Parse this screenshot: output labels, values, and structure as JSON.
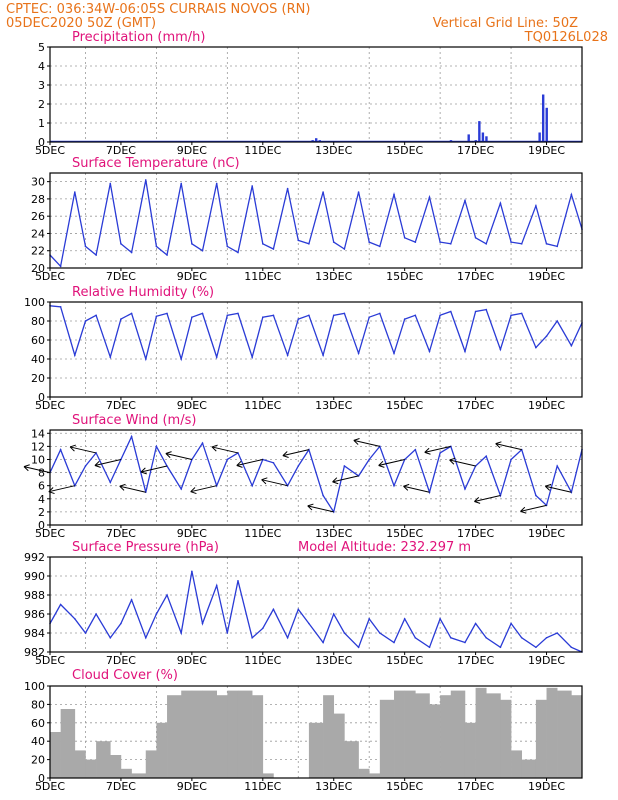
{
  "header": {
    "left_line1": "CPTEC:   036:34W-06:05S   CURRAIS NOVOS (RN)",
    "left_line2": "05DEC2020 50Z (GMT)",
    "right_line1": "Vertical Grid Line: 50Z",
    "right_line2": "TQ0126L028"
  },
  "colors": {
    "header": "#e8731a",
    "title": "#e0127a",
    "series": "#2a3bd6",
    "cloud": "#a9a9a9"
  },
  "chart_data": [
    {
      "type": "bar",
      "title": "Precipitation (mm/h)",
      "x_ticks": [
        "5DEC",
        "7DEC",
        "9DEC",
        "11DEC",
        "13DEC",
        "15DEC",
        "17DEC",
        "19DEC"
      ],
      "ylim": [
        0,
        5
      ],
      "y_ticks": [
        0,
        1,
        2,
        3,
        4,
        5
      ],
      "grid": true,
      "x": [
        7.9,
        8.0,
        12.4,
        12.5,
        12.6,
        13.2,
        16.3,
        16.8,
        17.0,
        17.1,
        17.2,
        17.3,
        18.8,
        18.9,
        19.0
      ],
      "values": [
        0.05,
        0.05,
        0.1,
        0.2,
        0.1,
        0.05,
        0.1,
        0.4,
        0.1,
        1.1,
        0.5,
        0.3,
        0.5,
        2.5,
        1.8
      ]
    },
    {
      "type": "line",
      "title": "Surface Temperature (nC)",
      "x_ticks": [
        "5DEC",
        "7DEC",
        "9DEC",
        "11DEC",
        "13DEC",
        "15DEC",
        "17DEC",
        "19DEC"
      ],
      "ylim": [
        20,
        31
      ],
      "y_ticks": [
        20,
        22,
        24,
        26,
        28,
        30
      ],
      "grid": true,
      "x": [
        5.0,
        5.3,
        5.7,
        6.0,
        6.3,
        6.7,
        7.0,
        7.3,
        7.7,
        8.0,
        8.3,
        8.7,
        9.0,
        9.3,
        9.7,
        10.0,
        10.3,
        10.7,
        11.0,
        11.3,
        11.7,
        12.0,
        12.3,
        12.7,
        13.0,
        13.3,
        13.7,
        14.0,
        14.3,
        14.7,
        15.0,
        15.3,
        15.7,
        16.0,
        16.3,
        16.7,
        17.0,
        17.3,
        17.7,
        18.0,
        18.3,
        18.7,
        19.0,
        19.3,
        19.7,
        20.0
      ],
      "values": [
        21.5,
        20.2,
        28.8,
        22.5,
        21.5,
        29.8,
        22.8,
        21.8,
        30.2,
        22.5,
        21.5,
        29.8,
        22.8,
        22.0,
        29.8,
        22.5,
        21.8,
        29.5,
        22.8,
        22.2,
        29.2,
        23.2,
        22.8,
        28.8,
        23.0,
        22.2,
        28.8,
        23.0,
        22.5,
        28.5,
        23.5,
        23.0,
        28.2,
        23.0,
        22.8,
        27.8,
        23.5,
        22.8,
        27.5,
        23.0,
        22.8,
        27.2,
        22.8,
        22.5,
        28.5,
        24.5
      ]
    },
    {
      "type": "line",
      "title": "Relative Humidity (%)",
      "x_ticks": [
        "5DEC",
        "7DEC",
        "9DEC",
        "11DEC",
        "13DEC",
        "15DEC",
        "17DEC",
        "19DEC"
      ],
      "ylim": [
        0,
        100
      ],
      "y_ticks": [
        0,
        20,
        40,
        60,
        80,
        100
      ],
      "grid": true,
      "x": [
        5.0,
        5.3,
        5.7,
        6.0,
        6.3,
        6.7,
        7.0,
        7.3,
        7.7,
        8.0,
        8.3,
        8.7,
        9.0,
        9.3,
        9.7,
        10.0,
        10.3,
        10.7,
        11.0,
        11.3,
        11.7,
        12.0,
        12.3,
        12.7,
        13.0,
        13.3,
        13.7,
        14.0,
        14.3,
        14.7,
        15.0,
        15.3,
        15.7,
        16.0,
        16.3,
        16.7,
        17.0,
        17.3,
        17.7,
        18.0,
        18.3,
        18.7,
        19.0,
        19.3,
        19.7,
        20.0
      ],
      "values": [
        96,
        95,
        44,
        80,
        86,
        42,
        82,
        88,
        40,
        85,
        88,
        40,
        84,
        88,
        42,
        86,
        88,
        42,
        84,
        86,
        44,
        82,
        86,
        44,
        86,
        88,
        46,
        84,
        88,
        46,
        82,
        86,
        48,
        86,
        90,
        48,
        90,
        92,
        50,
        86,
        88,
        52,
        64,
        80,
        54,
        78
      ]
    },
    {
      "type": "line",
      "title": "Surface Wind (m/s)",
      "x_ticks": [
        "5DEC",
        "7DEC",
        "9DEC",
        "11DEC",
        "13DEC",
        "15DEC",
        "17DEC",
        "19DEC"
      ],
      "ylim": [
        0,
        14.5
      ],
      "y_ticks": [
        0,
        2,
        4,
        6,
        8,
        10,
        12,
        14
      ],
      "grid": true,
      "arrows": true,
      "x": [
        5.0,
        5.3,
        5.7,
        6.0,
        6.3,
        6.7,
        7.0,
        7.3,
        7.7,
        8.0,
        8.3,
        8.7,
        9.0,
        9.3,
        9.7,
        10.0,
        10.3,
        10.7,
        11.0,
        11.3,
        11.7,
        12.0,
        12.3,
        12.7,
        13.0,
        13.3,
        13.7,
        14.0,
        14.3,
        14.7,
        15.0,
        15.3,
        15.7,
        16.0,
        16.3,
        16.7,
        17.0,
        17.3,
        17.7,
        18.0,
        18.3,
        18.7,
        19.0,
        19.3,
        19.7,
        20.0
      ],
      "values": [
        8,
        11.5,
        6,
        9,
        11,
        6.5,
        10,
        13.5,
        5,
        12,
        9,
        5.5,
        10,
        12.5,
        6,
        10,
        11,
        6,
        10,
        9.5,
        6,
        9,
        11.5,
        4.5,
        2,
        9,
        7.5,
        10,
        12,
        6,
        10,
        11.5,
        5,
        11,
        12,
        5.5,
        9,
        10.5,
        4.5,
        10,
        11.5,
        4.5,
        3,
        9,
        5,
        11.5
      ]
    },
    {
      "type": "line",
      "title": "Surface Pressure (hPa)",
      "annotation": "Model Altitude: 232.297 m",
      "x_ticks": [
        "5DEC",
        "7DEC",
        "9DEC",
        "11DEC",
        "13DEC",
        "15DEC",
        "17DEC",
        "19DEC"
      ],
      "ylim": [
        982,
        992
      ],
      "y_ticks": [
        982,
        984,
        986,
        988,
        990,
        992
      ],
      "grid": true,
      "x": [
        5.0,
        5.3,
        5.7,
        6.0,
        6.3,
        6.7,
        7.0,
        7.3,
        7.7,
        8.0,
        8.3,
        8.7,
        9.0,
        9.3,
        9.7,
        10.0,
        10.3,
        10.7,
        11.0,
        11.3,
        11.7,
        12.0,
        12.3,
        12.7,
        13.0,
        13.3,
        13.7,
        14.0,
        14.3,
        14.7,
        15.0,
        15.3,
        15.7,
        16.0,
        16.3,
        16.7,
        17.0,
        17.3,
        17.7,
        18.0,
        18.3,
        18.7,
        19.0,
        19.3,
        19.7,
        20.0
      ],
      "values": [
        985,
        987,
        985.5,
        984,
        986,
        983.5,
        985,
        987.5,
        983.5,
        986,
        988,
        984,
        990.5,
        985,
        989,
        984,
        989.5,
        983.5,
        984.5,
        986.5,
        983.5,
        986.5,
        985,
        983,
        986,
        984,
        982.5,
        985.5,
        984,
        983,
        985.5,
        983.5,
        982.5,
        985.5,
        983.5,
        983,
        985,
        983.5,
        982.5,
        985,
        983.5,
        982.5,
        983.5,
        984,
        982.5,
        982
      ]
    },
    {
      "type": "bar",
      "title": "Cloud Cover (%)",
      "x_ticks": [
        "5DEC",
        "7DEC",
        "9DEC",
        "11DEC",
        "13DEC",
        "15DEC",
        "17DEC",
        "19DEC"
      ],
      "ylim": [
        0,
        100
      ],
      "y_ticks": [
        0,
        20,
        40,
        60,
        80,
        100
      ],
      "grid": true,
      "x": [
        5.0,
        5.3,
        5.7,
        6.0,
        6.3,
        6.7,
        7.0,
        7.3,
        7.7,
        8.0,
        8.3,
        8.7,
        9.0,
        9.3,
        9.7,
        10.0,
        10.3,
        10.7,
        11.0,
        11.3,
        11.7,
        12.0,
        12.3,
        12.7,
        13.0,
        13.3,
        13.7,
        14.0,
        14.3,
        14.7,
        15.0,
        15.3,
        15.7,
        16.0,
        16.3,
        16.7,
        17.0,
        17.3,
        17.7,
        18.0,
        18.3,
        18.7,
        19.0,
        19.3,
        19.7,
        20.0
      ],
      "values": [
        50,
        75,
        30,
        20,
        40,
        25,
        10,
        5,
        30,
        60,
        90,
        95,
        95,
        95,
        90,
        95,
        95,
        90,
        5,
        0,
        0,
        0,
        60,
        90,
        70,
        40,
        10,
        5,
        85,
        95,
        95,
        92,
        80,
        90,
        95,
        60,
        98,
        92,
        85,
        30,
        20,
        85,
        98,
        95,
        90,
        95
      ]
    }
  ]
}
